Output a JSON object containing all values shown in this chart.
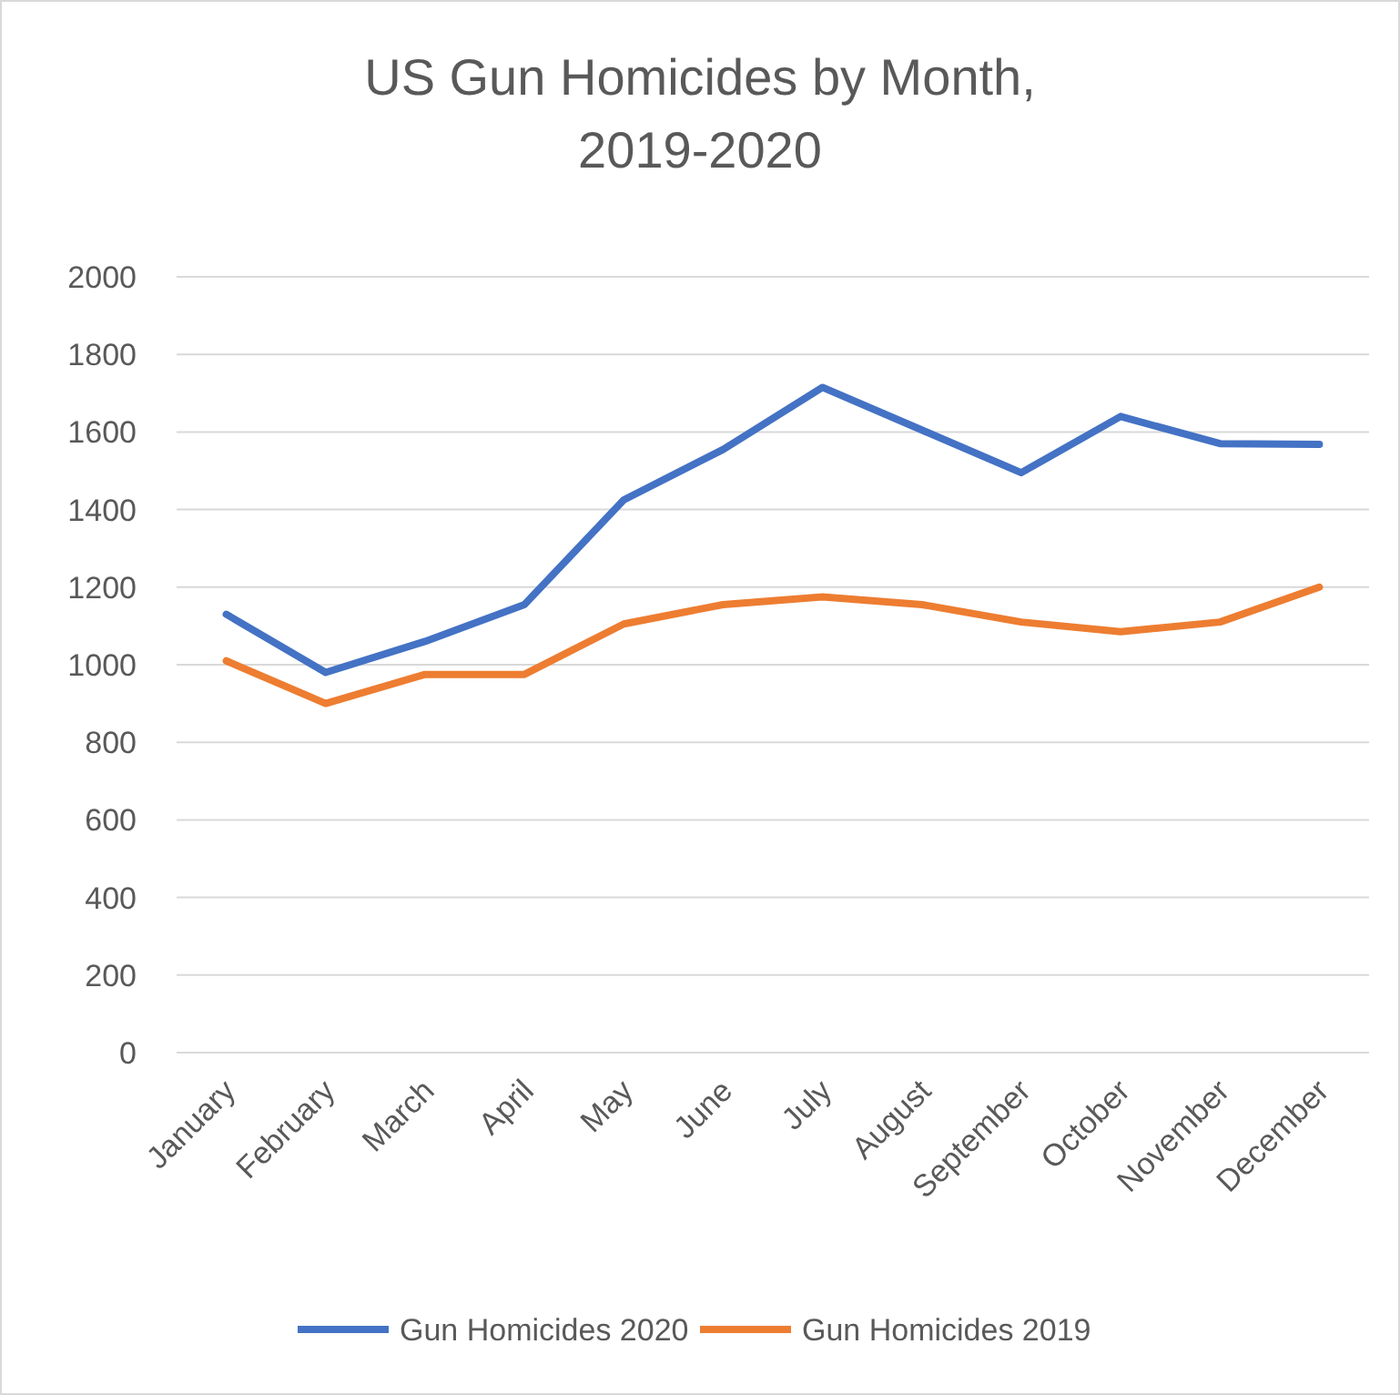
{
  "chart_data": {
    "type": "line",
    "title": "US Gun Homicides by Month, 2019-2020",
    "categories": [
      "January",
      "February",
      "March",
      "April",
      "May",
      "June",
      "July",
      "August",
      "September",
      "October",
      "November",
      "December"
    ],
    "series": [
      {
        "name": "Gun Homicides 2020",
        "color": "#4472c4",
        "values": [
          1130,
          980,
          1060,
          1155,
          1425,
          1555,
          1715,
          1605,
          1495,
          1640,
          1570,
          1568
        ]
      },
      {
        "name": "Gun Homicides 2019",
        "color": "#ed7d31",
        "values": [
          1010,
          900,
          975,
          975,
          1105,
          1155,
          1175,
          1155,
          1110,
          1085,
          1110,
          1200
        ]
      }
    ],
    "ylim": [
      0,
      2000
    ],
    "yticks": [
      0,
      200,
      400,
      600,
      800,
      1000,
      1200,
      1400,
      1600,
      1800,
      2000
    ],
    "grid": "y",
    "legend": "bottom",
    "marker": "none",
    "line_style": "solid"
  }
}
